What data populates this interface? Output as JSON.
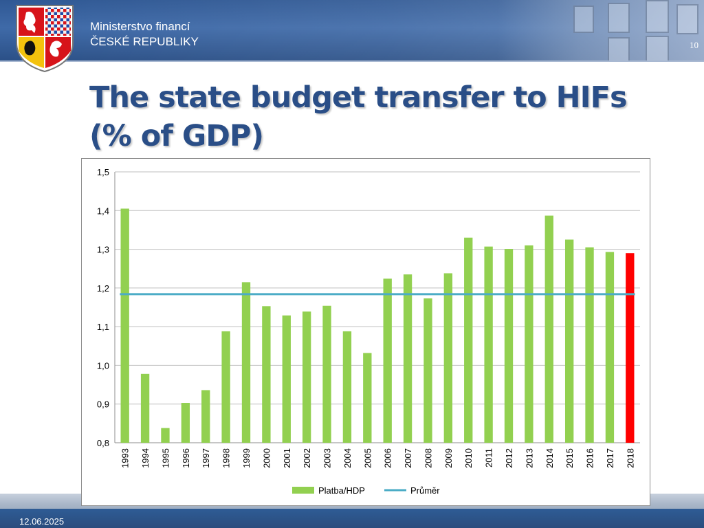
{
  "header": {
    "ministry_line1": "Ministerstvo financí",
    "ministry_line2": "ČESKÉ REPUBLIKY",
    "slide_number": "10",
    "emblem_icon": "czech-coat-of-arms-icon"
  },
  "title": {
    "line1": "The state budget transfer to HIFs",
    "line2": "(% of GDP)"
  },
  "footer": {
    "date": "12.06.2025"
  },
  "colors": {
    "bar": "#92d050",
    "highlight_bar": "#ff0000",
    "average_line": "#4bacc6",
    "title": "#2a4e87",
    "grid": "#bfbfbf"
  },
  "chart_data": {
    "type": "bar",
    "categories": [
      "1993",
      "1994",
      "1995",
      "1996",
      "1997",
      "1998",
      "1999",
      "2000",
      "2001",
      "2002",
      "2003",
      "2004",
      "2005",
      "2006",
      "2007",
      "2008",
      "2009",
      "2010",
      "2011",
      "2012",
      "2013",
      "2014",
      "2015",
      "2016",
      "2017",
      "2018"
    ],
    "series": [
      {
        "name": "Platba/HDP",
        "values": [
          1.405,
          0.978,
          0.838,
          0.903,
          0.936,
          1.088,
          1.215,
          1.153,
          1.129,
          1.139,
          1.154,
          1.088,
          1.032,
          1.224,
          1.235,
          1.173,
          1.238,
          1.33,
          1.307,
          1.301,
          1.31,
          1.387,
          1.325,
          1.305,
          1.293,
          1.29
        ],
        "highlight_index": 25
      },
      {
        "name": "Průměr",
        "type": "line",
        "value": 1.184
      }
    ],
    "ylim": [
      0.8,
      1.5
    ],
    "yticks": [
      "0,8",
      "0,9",
      "1,0",
      "1,1",
      "1,2",
      "1,3",
      "1,4",
      "1,5"
    ],
    "ytick_values": [
      0.8,
      0.9,
      1.0,
      1.1,
      1.2,
      1.3,
      1.4,
      1.5
    ],
    "grid": true,
    "legend": "bottom"
  }
}
